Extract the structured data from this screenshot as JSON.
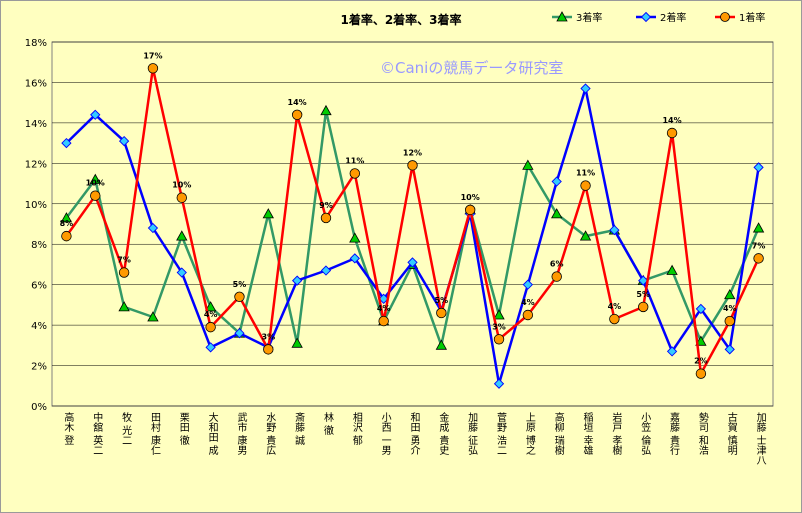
{
  "chart_data": {
    "type": "line",
    "title": "1着率、2着率、3着率",
    "watermark": "©Caniの競馬データ研究室",
    "ylim": [
      0,
      18
    ],
    "ytick_step": 2,
    "y_tick_format": "percent",
    "grid": true,
    "legend_position": "top-right",
    "categories": [
      "高木 登",
      "中舘 英二",
      "牧 光二",
      "田村 康仁",
      "栗田 徹",
      "大和田 成",
      "武市 康男",
      "水野 貴広",
      "斎藤 誠",
      "林 徹",
      "相沢 郁",
      "小西 一男",
      "和田 勇介",
      "金成 貴史",
      "加藤 征弘",
      "菅野 浩二",
      "上原 博之",
      "高柳 瑞樹",
      "稲垣 幸雄",
      "岩戸 孝樹",
      "小笠 倫弘",
      "嘉藤 貴行",
      "勢司 和浩",
      "古賀 慎明",
      "加藤 士津八"
    ],
    "series": [
      {
        "name": "3着率",
        "color": "#339966",
        "marker": "triangle",
        "marker_fill": "#00cc00",
        "values": [
          9.3,
          11.2,
          4.9,
          4.4,
          8.4,
          4.9,
          3.6,
          9.5,
          3.1,
          14.6,
          8.3,
          4.2,
          7.0,
          3.0,
          9.7,
          4.5,
          11.9,
          9.5,
          8.4,
          8.7,
          6.2,
          6.7,
          3.2,
          5.5,
          8.8
        ]
      },
      {
        "name": "2着率",
        "color": "#0000ff",
        "marker": "diamond",
        "marker_fill": "#33ccff",
        "values": [
          13.0,
          14.4,
          13.1,
          8.8,
          6.6,
          2.9,
          3.6,
          2.9,
          6.2,
          6.7,
          7.3,
          5.3,
          7.1,
          4.7,
          9.5,
          1.1,
          6.0,
          11.1,
          15.7,
          8.7,
          6.2,
          2.7,
          4.8,
          2.8,
          11.8
        ]
      },
      {
        "name": "1着率",
        "color": "#ff0000",
        "marker": "circle",
        "marker_fill": "#ff9900",
        "values": [
          8.4,
          10.4,
          6.6,
          16.7,
          10.3,
          3.9,
          5.4,
          2.8,
          14.4,
          9.3,
          11.5,
          4.2,
          11.9,
          4.6,
          9.7,
          3.3,
          4.5,
          6.4,
          10.9,
          4.3,
          4.9,
          13.5,
          1.6,
          4.2,
          7.3
        ],
        "data_labels": [
          "8%",
          "10%",
          "7%",
          "17%",
          "10%",
          "4%",
          "5%",
          "3%",
          "14%",
          "9%",
          "11%",
          "4%",
          "12%",
          "5%",
          "10%",
          "3%",
          "4%",
          "6%",
          "11%",
          "4%",
          "5%",
          "14%",
          "2%",
          "4%",
          "7%"
        ]
      }
    ]
  }
}
